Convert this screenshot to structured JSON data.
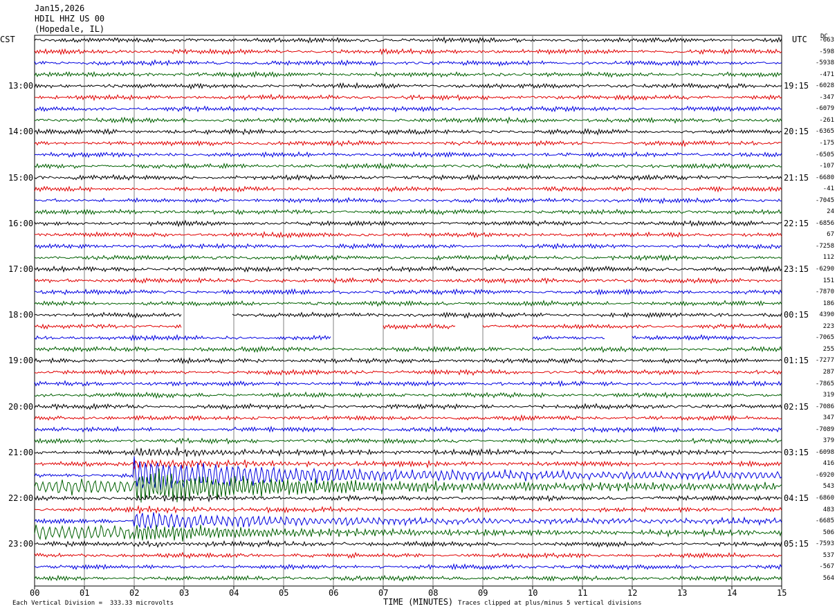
{
  "header": {
    "date": "Jan15,2026",
    "station": "HDIL HHZ US 00",
    "location": "(Hopedale, IL)"
  },
  "left_tz": "CST",
  "right_tz": "UTC",
  "dc_label": "DC",
  "footer": {
    "left_note": "Each Vertical Division =  333.33 microvolts",
    "xlabel": "TIME (MINUTES)",
    "right_note": "Traces clipped at plus/minus 5 vertical divisions"
  },
  "colors": {
    "trace_cycle": [
      "#000000",
      "#e00000",
      "#0000e0",
      "#006000"
    ],
    "grid": "#808080"
  },
  "chart_data": {
    "type": "line",
    "title": "HDIL HHZ US 00",
    "xlabel": "TIME (MINUTES)",
    "xlim": [
      0,
      15
    ],
    "x_ticks": [
      "00",
      "01",
      "02",
      "03",
      "04",
      "05",
      "06",
      "07",
      "08",
      "09",
      "10",
      "11",
      "12",
      "13",
      "14",
      "15"
    ],
    "rows_per_hour": 4,
    "row_count": 48,
    "left_hour_labels": [
      "13:00",
      "14:00",
      "15:00",
      "16:00",
      "17:00",
      "18:00",
      "19:00",
      "20:00",
      "21:00",
      "22:00",
      "23:00"
    ],
    "right_hour_labels": [
      "19:15",
      "20:15",
      "21:15",
      "22:15",
      "23:15",
      "00:15",
      "01:15",
      "02:15",
      "03:15",
      "04:15",
      "05:15"
    ],
    "dc_offsets": [
      "-663",
      "-598",
      "-5938",
      "-471",
      "-6028",
      "-347",
      "-6079",
      "-261",
      "-6365",
      "-175",
      "-6505",
      "-107",
      "-6680",
      "-41",
      "-7045",
      "24",
      "-6856",
      "67",
      "-7258",
      "112",
      "-6290",
      "151",
      "-7870",
      "186",
      "4390",
      "223",
      "-7065",
      "255",
      "-7277",
      "287",
      "-7865",
      "319",
      "-7086",
      "347",
      "-7089",
      "379",
      "-6098",
      "416",
      "-6920",
      "543",
      "-6860",
      "483",
      "-6685",
      "506",
      "-7593",
      "537",
      "-567",
      "564"
    ],
    "data_gaps": [
      {
        "row": 24,
        "from": 2.95,
        "to": 3.95
      },
      {
        "row": 25,
        "from": 2.95,
        "to": 7.0
      },
      {
        "row": 25,
        "from": 8.45,
        "to": 9.0
      },
      {
        "row": 26,
        "from": 5.95,
        "to": 10.0
      },
      {
        "row": 26,
        "from": 11.45,
        "to": 12.0
      }
    ],
    "events": [
      {
        "minute": 2.0,
        "rows": [
          36,
          44
        ],
        "description": "earthquake onset"
      }
    ]
  }
}
